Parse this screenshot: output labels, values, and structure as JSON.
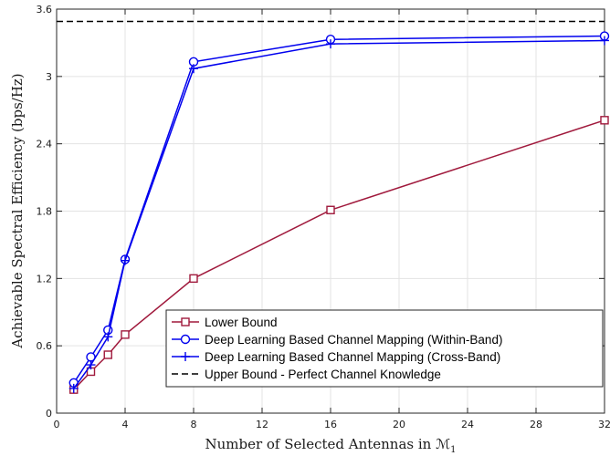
{
  "chart_data": {
    "type": "line",
    "xlabel": "Number of Selected Antennas in ℳ",
    "xlabel_subscript": "1",
    "ylabel": "Achievable Spectral Efficiency (bps/Hz)",
    "xlim": [
      0,
      32
    ],
    "ylim": [
      0,
      3.6
    ],
    "xticks": [
      0,
      4,
      8,
      12,
      16,
      20,
      24,
      28,
      32
    ],
    "yticks": [
      0,
      0.6,
      1.2,
      1.8,
      2.4,
      3,
      3.6
    ],
    "xtick_labels": [
      "0",
      "4",
      "8",
      "12",
      "16",
      "20",
      "24",
      "28",
      "32"
    ],
    "ytick_labels": [
      "0",
      "0.6",
      "1.2",
      "1.8",
      "2.4",
      "3",
      "3.6"
    ],
    "grid": true,
    "legend_position": "bottom-right",
    "series": [
      {
        "name": "Lower Bound",
        "color": "#a0193c",
        "marker": "square",
        "style": "solid",
        "x": [
          1,
          2,
          3,
          4,
          8,
          16,
          32
        ],
        "y": [
          0.21,
          0.37,
          0.52,
          0.7,
          1.2,
          1.81,
          2.61
        ]
      },
      {
        "name": "Deep Learning Based Channel Mapping (Within-Band)",
        "color": "#0000ee",
        "marker": "circle",
        "style": "solid",
        "x": [
          1,
          2,
          3,
          4,
          8,
          16,
          32
        ],
        "y": [
          0.27,
          0.5,
          0.74,
          1.37,
          3.13,
          3.33,
          3.36
        ]
      },
      {
        "name": "Deep Learning Based Channel Mapping (Cross-Band)",
        "color": "#0000ee",
        "marker": "plus",
        "style": "solid",
        "x": [
          1,
          2,
          3,
          4,
          8,
          16,
          32
        ],
        "y": [
          0.22,
          0.43,
          0.68,
          1.36,
          3.07,
          3.29,
          3.32
        ]
      },
      {
        "name": "Upper Bound - Perfect Channel Knowledge",
        "color": "#000000",
        "marker": "none",
        "style": "dashed",
        "x": [
          0,
          32
        ],
        "y": [
          3.49,
          3.49
        ]
      }
    ]
  }
}
